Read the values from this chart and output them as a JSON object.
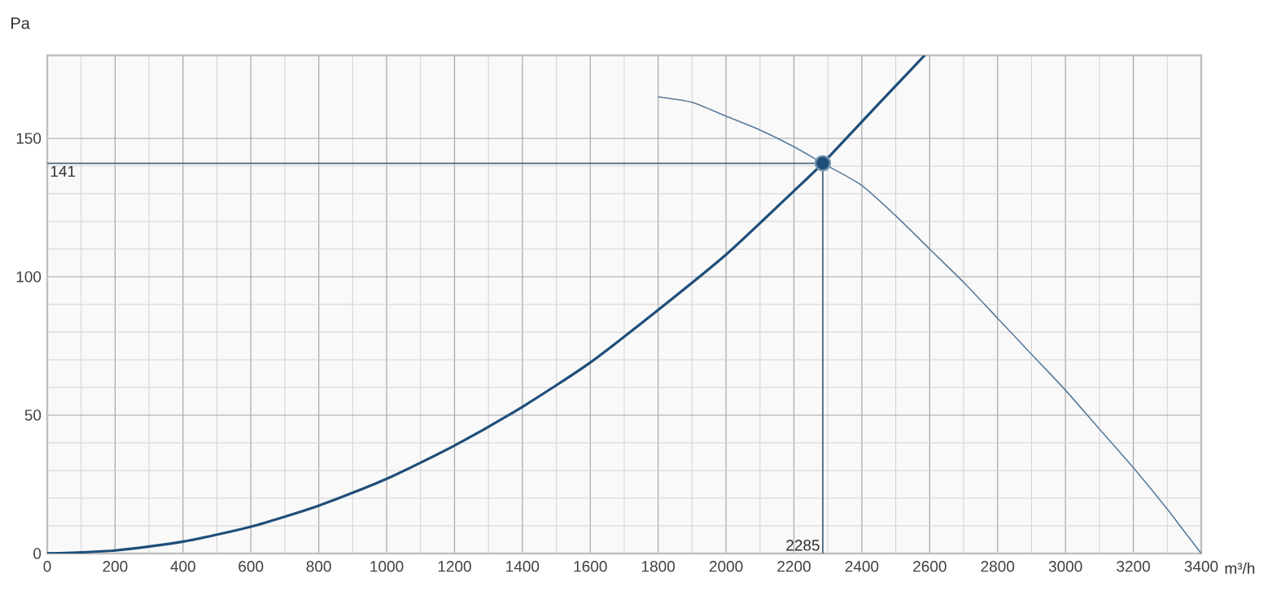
{
  "chart_data": {
    "type": "line",
    "xlabel": "m³/h",
    "ylabel": "Pa",
    "xlim": [
      0,
      3400
    ],
    "ylim": [
      0,
      180
    ],
    "xticks": [
      0,
      200,
      400,
      600,
      800,
      1000,
      1200,
      1400,
      1600,
      1800,
      2000,
      2200,
      2400,
      2600,
      2800,
      3000,
      3200,
      3400
    ],
    "yticks": [
      0,
      50,
      100,
      150
    ],
    "grid": true,
    "marker": "none",
    "series": [
      {
        "color": "#1f4e79",
        "x": [
          0,
          200,
          400,
          600,
          800,
          1000,
          1200,
          1400,
          1600,
          1800,
          2000,
          2200,
          2285,
          2400,
          2500,
          2585
        ],
        "values": [
          0,
          1.1,
          4.3,
          9.7,
          17.3,
          27,
          39,
          53,
          69,
          88,
          108,
          131,
          141,
          156,
          169,
          180
        ]
      },
      {
        "color": "#5a7a9a",
        "x": [
          1800,
          1900,
          2000,
          2100,
          2200,
          2285,
          2400,
          2500,
          2600,
          2700,
          2800,
          2900,
          3000,
          3100,
          3200,
          3300,
          3350,
          3400
        ],
        "values": [
          165,
          163,
          158,
          153,
          147,
          141,
          133,
          122,
          110,
          98,
          85,
          72,
          59,
          45,
          31,
          16,
          8,
          0
        ]
      },
      {
        "type": "scatter",
        "marker": "circle",
        "color": "#1f4e79",
        "x": [
          2285
        ],
        "values": [
          141
        ]
      }
    ],
    "ref_lines": [
      {
        "axis": "y",
        "value": 141,
        "label": "141",
        "color": "#4a6580"
      },
      {
        "axis": "x",
        "value": 2285,
        "label": "2285",
        "color": "#4a6580"
      }
    ]
  }
}
